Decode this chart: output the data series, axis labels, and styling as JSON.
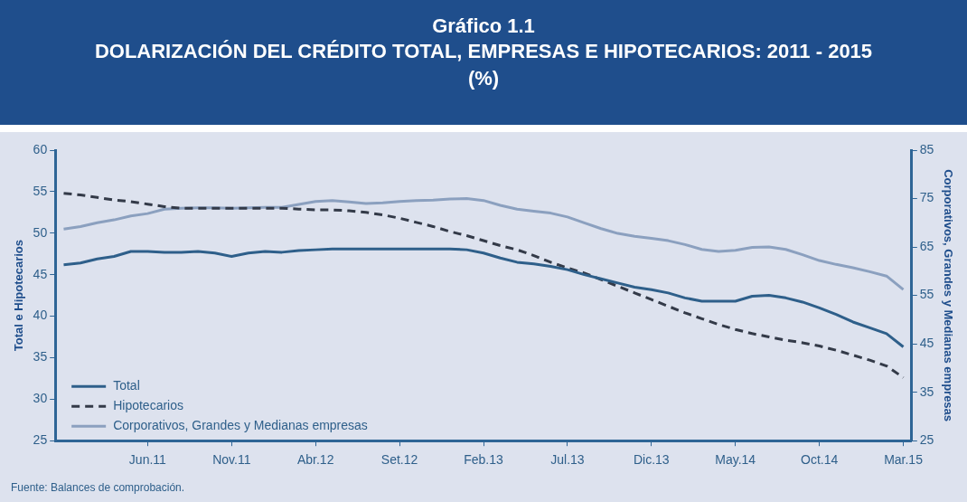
{
  "chart_data": {
    "type": "line",
    "title": "Gráfico 1.1",
    "subtitle": "DOLARIZACIÓN DEL CRÉDITO TOTAL, EMPRESAS E HIPOTECARIOS: 2011 - 2015\n(%)",
    "ylabel": "Total e Hipotecarios",
    "y2label": "Corporativos, Grandes y Medianas empresas",
    "annotations": [
      "Fuente: Balances de comprobación."
    ],
    "categories": [
      null,
      null,
      null,
      null,
      null,
      "Jun.11",
      null,
      null,
      null,
      null,
      "Nov.11",
      null,
      null,
      null,
      null,
      "Abr.12",
      null,
      null,
      null,
      null,
      "Set.12",
      null,
      null,
      null,
      null,
      "Feb.13",
      null,
      null,
      null,
      null,
      "Jul.13",
      null,
      null,
      null,
      null,
      "Dic.13",
      null,
      null,
      null,
      null,
      "May.14",
      null,
      null,
      null,
      null,
      "Oct.14",
      null,
      null,
      null,
      null,
      "Mar.15"
    ],
    "series": [
      {
        "name": "Total",
        "color": "#2e5f8a",
        "line_style": "solid",
        "values": [
          46.2,
          46.4,
          46.9,
          47.2,
          47.8,
          47.8,
          47.7,
          47.7,
          47.8,
          47.6,
          47.2,
          47.6,
          47.8,
          47.7,
          47.9,
          48.0,
          48.1,
          48.1,
          48.1,
          48.1,
          48.1,
          48.1,
          48.1,
          48.1,
          48.0,
          47.6,
          47.0,
          46.5,
          46.3,
          46.0,
          45.6,
          45.0,
          44.5,
          44.0,
          43.5,
          43.2,
          42.8,
          42.2,
          41.8,
          41.8,
          41.8,
          42.4,
          42.5,
          42.2,
          41.7,
          41.0,
          40.2,
          39.3,
          38.6,
          37.9,
          36.3
        ]
      },
      {
        "name": "Hipotecarios",
        "color": "#333a48",
        "line_style": "dashed",
        "values": [
          54.8,
          54.6,
          54.3,
          54.0,
          53.8,
          53.5,
          53.2,
          53.0,
          53.0,
          53.0,
          53.0,
          53.0,
          53.0,
          53.0,
          52.9,
          52.8,
          52.8,
          52.7,
          52.5,
          52.2,
          51.8,
          51.3,
          50.8,
          50.2,
          49.7,
          49.1,
          48.5,
          48.0,
          47.3,
          46.5,
          45.8,
          45.2,
          44.4,
          43.6,
          42.8,
          42.0,
          41.2,
          40.4,
          39.7,
          39.0,
          38.4,
          37.9,
          37.5,
          37.1,
          36.8,
          36.4,
          35.9,
          35.3,
          34.7,
          34.0,
          32.6
        ]
      },
      {
        "name": "Corporativos, Grandes y Medianas empresas",
        "color": "#8ba0bf",
        "line_style": "solid",
        "axis": "y2",
        "values": [
          68.7,
          69.2,
          70.0,
          70.6,
          71.4,
          71.9,
          72.8,
          73.0,
          73.1,
          73.1,
          73.0,
          73.1,
          73.2,
          73.2,
          73.8,
          74.4,
          74.6,
          74.3,
          74.0,
          74.1,
          74.4,
          74.6,
          74.7,
          74.9,
          75.0,
          74.6,
          73.6,
          72.8,
          72.4,
          72.0,
          71.2,
          70.0,
          68.8,
          67.8,
          67.2,
          66.8,
          66.3,
          65.5,
          64.5,
          64.1,
          64.3,
          64.9,
          65.0,
          64.5,
          63.4,
          62.2,
          61.4,
          60.7,
          59.9,
          59.0,
          56.2
        ]
      }
    ],
    "ylim": [
      25,
      60
    ],
    "yticks": [
      25,
      30,
      35,
      40,
      45,
      50,
      55,
      60
    ],
    "y2lim": [
      25,
      85
    ],
    "y2ticks": [
      25,
      35,
      45,
      55,
      65,
      75,
      85
    ],
    "grid": false,
    "legend": "bottom left",
    "marker": "none"
  }
}
